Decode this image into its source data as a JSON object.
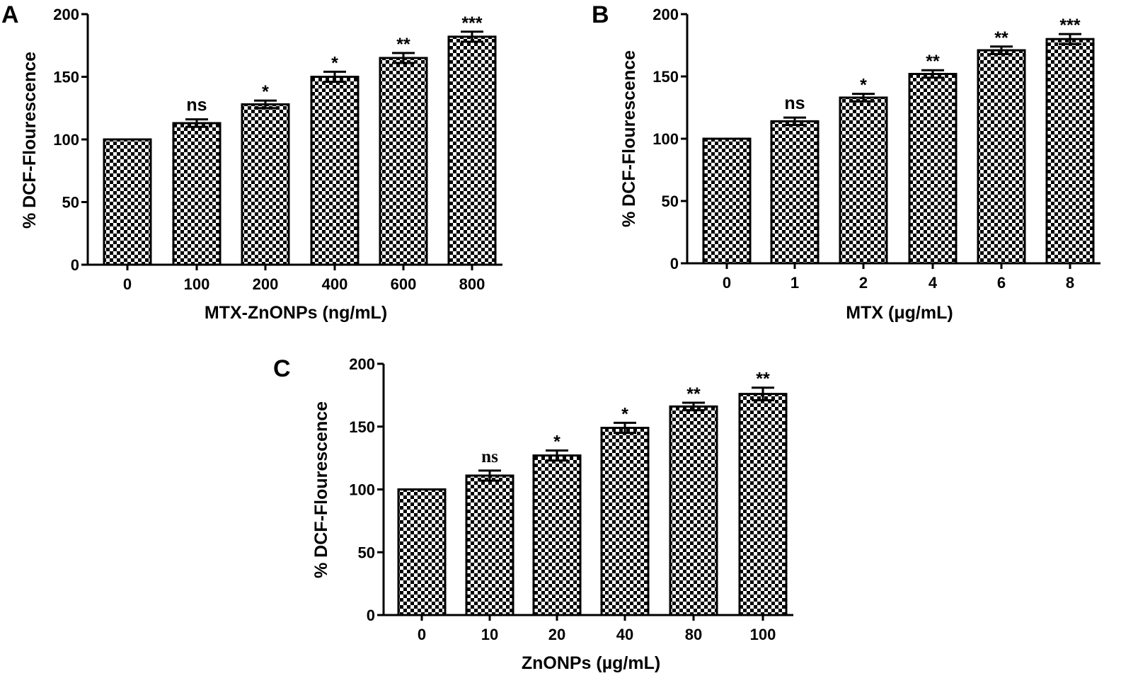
{
  "chart_data": [
    {
      "panel": "A",
      "type": "bar",
      "categories": [
        "0",
        "100",
        "200",
        "400",
        "600",
        "800"
      ],
      "values": [
        100,
        113,
        128,
        150,
        165,
        182
      ],
      "errors": [
        0,
        3,
        3,
        4,
        4,
        4
      ],
      "significance": [
        "",
        "ns",
        "*",
        "*",
        "**",
        "***"
      ],
      "xlabel": "MTX-ZnONPs (ng/mL)",
      "ylabel": "% DCF-Flourescence",
      "ylim": [
        0,
        200
      ],
      "yticks": [
        "0",
        "50",
        "100",
        "150",
        "200"
      ],
      "grid": false,
      "pattern": "checkerboard"
    },
    {
      "panel": "B",
      "type": "bar",
      "categories": [
        "0",
        "1",
        "2",
        "4",
        "6",
        "8"
      ],
      "values": [
        100,
        114,
        133,
        152,
        171,
        180
      ],
      "errors": [
        0,
        3,
        3,
        3,
        3,
        4
      ],
      "significance": [
        "",
        "ns",
        "*",
        "**",
        "**",
        "***"
      ],
      "xlabel": "MTX (μg/mL)",
      "ylabel": "% DCF-Flourescence",
      "ylim": [
        0,
        200
      ],
      "yticks": [
        "0",
        "50",
        "100",
        "150",
        "200"
      ],
      "grid": false,
      "pattern": "checkerboard"
    },
    {
      "panel": "C",
      "type": "bar",
      "categories": [
        "0",
        "10",
        "20",
        "40",
        "80",
        "100"
      ],
      "values": [
        100,
        111,
        127,
        149,
        166,
        176
      ],
      "errors": [
        0,
        4,
        4,
        4,
        3,
        5
      ],
      "significance": [
        "",
        "ns",
        "*",
        "*",
        "**",
        "**"
      ],
      "xlabel": "ZnONPs (µg/mL)",
      "ylabel": "% DCF-Flourescence",
      "ylim": [
        0,
        200
      ],
      "yticks": [
        "0",
        "50",
        "100",
        "150",
        "200"
      ],
      "grid": false,
      "pattern": "checkerboard"
    }
  ],
  "colors": {
    "ink": "#000000",
    "paper": "#ffffff"
  }
}
